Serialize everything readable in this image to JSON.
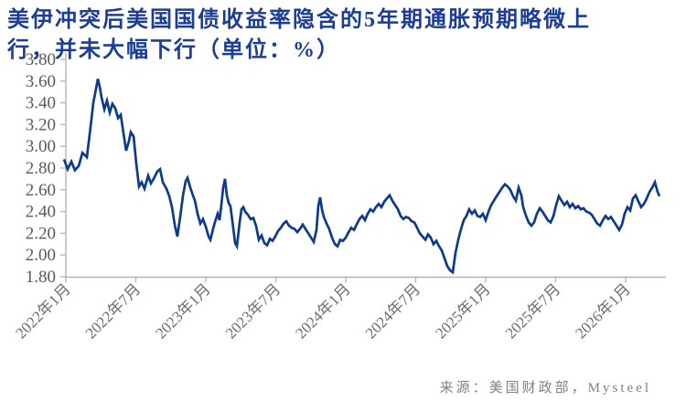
{
  "title": {
    "line1": "美伊冲突后美国国债收益率隐含的5年期通胀预期略微上",
    "line2": "行，并未大幅下行（单位：%）"
  },
  "source_note": "来源：美国财政部，Mysteel",
  "colors": {
    "title": "#1c3d96",
    "line": "#0d3a8b",
    "axis": "#b3b3b3",
    "y_label": "#595959",
    "x_label": "#6e6e6e",
    "source": "#808080",
    "background": "#ffffff"
  },
  "chart_data": {
    "type": "line",
    "title": "美伊冲突后美国国债收益率隐含的5年期通胀预期略微上行，并未大幅下行（单位：%）",
    "unit": "%",
    "xlabel": "",
    "ylabel": "",
    "ylim": [
      1.8,
      3.8
    ],
    "ytick_step": 0.2,
    "y_ticks": [
      "1.80",
      "2.00",
      "2.20",
      "2.40",
      "2.60",
      "2.80",
      "3.00",
      "3.20",
      "3.40",
      "3.60",
      "3.80"
    ],
    "x_ticks": [
      {
        "label": "2022年1月",
        "year": 2022.0
      },
      {
        "label": "2022年7月",
        "year": 2022.5
      },
      {
        "label": "2023年1月",
        "year": 2023.0
      },
      {
        "label": "2023年7月",
        "year": 2023.5
      },
      {
        "label": "2024年1月",
        "year": 2024.0
      },
      {
        "label": "2024年7月",
        "year": 2024.5
      },
      {
        "label": "2025年1月",
        "year": 2025.0
      },
      {
        "label": "2025年7月",
        "year": 2025.5
      },
      {
        "label": "2026年1月",
        "year": 2026.0
      }
    ],
    "x_range_years": [
      2021.99,
      2026.25
    ],
    "grid": false,
    "legend": false,
    "series": [
      {
        "points": [
          [
            2021.987,
            2.88
          ],
          [
            2022.013,
            2.79
          ],
          [
            2022.039,
            2.86
          ],
          [
            2022.065,
            2.78
          ],
          [
            2022.092,
            2.82
          ],
          [
            2022.118,
            2.94
          ],
          [
            2022.15,
            2.9
          ],
          [
            2022.176,
            3.17
          ],
          [
            2022.196,
            3.4
          ],
          [
            2022.216,
            3.53
          ],
          [
            2022.229,
            3.62
          ],
          [
            2022.242,
            3.55
          ],
          [
            2022.255,
            3.45
          ],
          [
            2022.275,
            3.34
          ],
          [
            2022.294,
            3.42
          ],
          [
            2022.314,
            3.31
          ],
          [
            2022.333,
            3.39
          ],
          [
            2022.353,
            3.35
          ],
          [
            2022.373,
            3.26
          ],
          [
            2022.392,
            3.29
          ],
          [
            2022.412,
            3.12
          ],
          [
            2022.431,
            2.96
          ],
          [
            2022.451,
            3.05
          ],
          [
            2022.464,
            3.13
          ],
          [
            2022.484,
            3.09
          ],
          [
            2022.503,
            2.84
          ],
          [
            2022.523,
            2.63
          ],
          [
            2022.542,
            2.67
          ],
          [
            2022.562,
            2.61
          ],
          [
            2022.588,
            2.73
          ],
          [
            2022.608,
            2.66
          ],
          [
            2022.627,
            2.7
          ],
          [
            2022.654,
            2.77
          ],
          [
            2022.673,
            2.79
          ],
          [
            2022.693,
            2.67
          ],
          [
            2022.719,
            2.61
          ],
          [
            2022.739,
            2.54
          ],
          [
            2022.758,
            2.44
          ],
          [
            2022.778,
            2.28
          ],
          [
            2022.797,
            2.17
          ],
          [
            2022.817,
            2.35
          ],
          [
            2022.837,
            2.55
          ],
          [
            2022.856,
            2.68
          ],
          [
            2022.869,
            2.71
          ],
          [
            2022.889,
            2.62
          ],
          [
            2022.908,
            2.55
          ],
          [
            2022.922,
            2.5
          ],
          [
            2022.941,
            2.38
          ],
          [
            2022.961,
            2.29
          ],
          [
            2022.98,
            2.33
          ],
          [
            2023.0,
            2.26
          ],
          [
            2023.02,
            2.17
          ],
          [
            2023.033,
            2.14
          ],
          [
            2023.052,
            2.24
          ],
          [
            2023.065,
            2.3
          ],
          [
            2023.085,
            2.38
          ],
          [
            2023.098,
            2.32
          ],
          [
            2023.111,
            2.46
          ],
          [
            2023.124,
            2.62
          ],
          [
            2023.137,
            2.7
          ],
          [
            2023.15,
            2.55
          ],
          [
            2023.163,
            2.48
          ],
          [
            2023.176,
            2.45
          ],
          [
            2023.196,
            2.25
          ],
          [
            2023.209,
            2.11
          ],
          [
            2023.222,
            2.08
          ],
          [
            2023.242,
            2.3
          ],
          [
            2023.255,
            2.42
          ],
          [
            2023.268,
            2.44
          ],
          [
            2023.281,
            2.4
          ],
          [
            2023.301,
            2.37
          ],
          [
            2023.32,
            2.33
          ],
          [
            2023.34,
            2.34
          ],
          [
            2023.359,
            2.27
          ],
          [
            2023.379,
            2.14
          ],
          [
            2023.399,
            2.18
          ],
          [
            2023.418,
            2.11
          ],
          [
            2023.438,
            2.09
          ],
          [
            2023.458,
            2.15
          ],
          [
            2023.477,
            2.13
          ],
          [
            2023.497,
            2.17
          ],
          [
            2023.516,
            2.22
          ],
          [
            2023.536,
            2.25
          ],
          [
            2023.556,
            2.29
          ],
          [
            2023.575,
            2.31
          ],
          [
            2023.595,
            2.27
          ],
          [
            2023.614,
            2.25
          ],
          [
            2023.634,
            2.24
          ],
          [
            2023.654,
            2.21
          ],
          [
            2023.673,
            2.24
          ],
          [
            2023.693,
            2.28
          ],
          [
            2023.712,
            2.24
          ],
          [
            2023.732,
            2.2
          ],
          [
            2023.752,
            2.16
          ],
          [
            2023.771,
            2.12
          ],
          [
            2023.791,
            2.23
          ],
          [
            2023.804,
            2.45
          ],
          [
            2023.817,
            2.53
          ],
          [
            2023.83,
            2.42
          ],
          [
            2023.843,
            2.35
          ],
          [
            2023.863,
            2.29
          ],
          [
            2023.882,
            2.24
          ],
          [
            2023.902,
            2.16
          ],
          [
            2023.922,
            2.1
          ],
          [
            2023.941,
            2.08
          ],
          [
            2023.961,
            2.14
          ],
          [
            2023.98,
            2.13
          ],
          [
            2024.0,
            2.16
          ],
          [
            2024.02,
            2.21
          ],
          [
            2024.039,
            2.25
          ],
          [
            2024.059,
            2.23
          ],
          [
            2024.078,
            2.28
          ],
          [
            2024.098,
            2.33
          ],
          [
            2024.118,
            2.36
          ],
          [
            2024.137,
            2.32
          ],
          [
            2024.157,
            2.38
          ],
          [
            2024.176,
            2.42
          ],
          [
            2024.196,
            2.4
          ],
          [
            2024.216,
            2.44
          ],
          [
            2024.235,
            2.47
          ],
          [
            2024.255,
            2.44
          ],
          [
            2024.275,
            2.49
          ],
          [
            2024.294,
            2.52
          ],
          [
            2024.314,
            2.55
          ],
          [
            2024.333,
            2.5
          ],
          [
            2024.353,
            2.46
          ],
          [
            2024.373,
            2.42
          ],
          [
            2024.392,
            2.36
          ],
          [
            2024.412,
            2.33
          ],
          [
            2024.431,
            2.35
          ],
          [
            2024.451,
            2.34
          ],
          [
            2024.471,
            2.31
          ],
          [
            2024.49,
            2.3
          ],
          [
            2024.51,
            2.25
          ],
          [
            2024.529,
            2.2
          ],
          [
            2024.549,
            2.17
          ],
          [
            2024.569,
            2.14
          ],
          [
            2024.588,
            2.19
          ],
          [
            2024.608,
            2.16
          ],
          [
            2024.627,
            2.1
          ],
          [
            2024.647,
            2.13
          ],
          [
            2024.667,
            2.08
          ],
          [
            2024.686,
            2.04
          ],
          [
            2024.706,
            1.97
          ],
          [
            2024.725,
            1.9
          ],
          [
            2024.745,
            1.86
          ],
          [
            2024.765,
            1.84
          ],
          [
            2024.784,
            2.02
          ],
          [
            2024.804,
            2.14
          ],
          [
            2024.824,
            2.24
          ],
          [
            2024.843,
            2.32
          ],
          [
            2024.863,
            2.36
          ],
          [
            2024.882,
            2.42
          ],
          [
            2024.902,
            2.38
          ],
          [
            2024.922,
            2.41
          ],
          [
            2024.941,
            2.36
          ],
          [
            2024.961,
            2.35
          ],
          [
            2024.98,
            2.38
          ],
          [
            2025.0,
            2.32
          ],
          [
            2025.02,
            2.4
          ],
          [
            2025.039,
            2.46
          ],
          [
            2025.059,
            2.5
          ],
          [
            2025.078,
            2.54
          ],
          [
            2025.098,
            2.58
          ],
          [
            2025.118,
            2.62
          ],
          [
            2025.137,
            2.65
          ],
          [
            2025.157,
            2.63
          ],
          [
            2025.176,
            2.6
          ],
          [
            2025.196,
            2.54
          ],
          [
            2025.216,
            2.5
          ],
          [
            2025.235,
            2.62
          ],
          [
            2025.255,
            2.55
          ],
          [
            2025.268,
            2.44
          ],
          [
            2025.288,
            2.36
          ],
          [
            2025.307,
            2.3
          ],
          [
            2025.327,
            2.27
          ],
          [
            2025.346,
            2.3
          ],
          [
            2025.366,
            2.38
          ],
          [
            2025.386,
            2.43
          ],
          [
            2025.405,
            2.4
          ],
          [
            2025.425,
            2.36
          ],
          [
            2025.444,
            2.32
          ],
          [
            2025.464,
            2.3
          ],
          [
            2025.484,
            2.36
          ],
          [
            2025.503,
            2.46
          ],
          [
            2025.523,
            2.54
          ],
          [
            2025.542,
            2.5
          ],
          [
            2025.562,
            2.46
          ],
          [
            2025.582,
            2.49
          ],
          [
            2025.601,
            2.44
          ],
          [
            2025.621,
            2.47
          ],
          [
            2025.641,
            2.43
          ],
          [
            2025.66,
            2.45
          ],
          [
            2025.68,
            2.42
          ],
          [
            2025.699,
            2.43
          ],
          [
            2025.719,
            2.4
          ],
          [
            2025.739,
            2.39
          ],
          [
            2025.758,
            2.37
          ],
          [
            2025.778,
            2.33
          ],
          [
            2025.797,
            2.29
          ],
          [
            2025.817,
            2.27
          ],
          [
            2025.837,
            2.32
          ],
          [
            2025.856,
            2.36
          ],
          [
            2025.876,
            2.33
          ],
          [
            2025.895,
            2.35
          ],
          [
            2025.915,
            2.31
          ],
          [
            2025.935,
            2.27
          ],
          [
            2025.954,
            2.23
          ],
          [
            2025.974,
            2.28
          ],
          [
            2025.993,
            2.38
          ],
          [
            2026.013,
            2.44
          ],
          [
            2026.033,
            2.41
          ],
          [
            2026.052,
            2.52
          ],
          [
            2026.072,
            2.55
          ],
          [
            2026.092,
            2.49
          ],
          [
            2026.111,
            2.44
          ],
          [
            2026.131,
            2.47
          ],
          [
            2026.15,
            2.52
          ],
          [
            2026.17,
            2.58
          ],
          [
            2026.19,
            2.62
          ],
          [
            2026.209,
            2.67
          ],
          [
            2026.229,
            2.58
          ],
          [
            2026.242,
            2.54
          ]
        ]
      }
    ]
  }
}
